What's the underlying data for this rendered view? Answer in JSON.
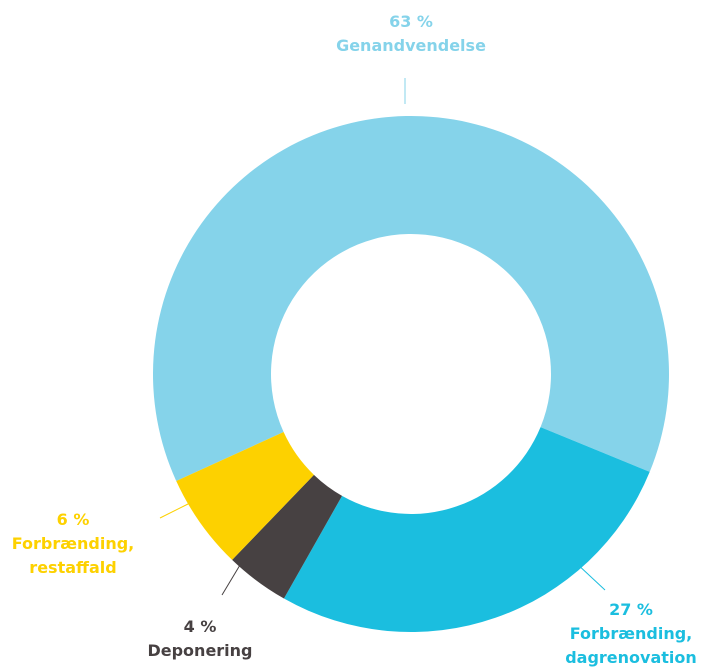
{
  "chart_data": {
    "type": "donut",
    "categories": [
      "Genandvendelse",
      "Forbrænding, dagrenovation",
      "Deponering",
      "Forbrænding, restaffald"
    ],
    "values": [
      63,
      27,
      4,
      6
    ],
    "value_labels": [
      "63 %",
      "27 %",
      "4 %",
      "6 %"
    ],
    "colors": [
      "#85d3ea",
      "#1bbedf",
      "#474142",
      "#fdd100"
    ],
    "label_colors": [
      "#85d3ea",
      "#1bbedf",
      "#474142",
      "#fdd100"
    ]
  }
}
